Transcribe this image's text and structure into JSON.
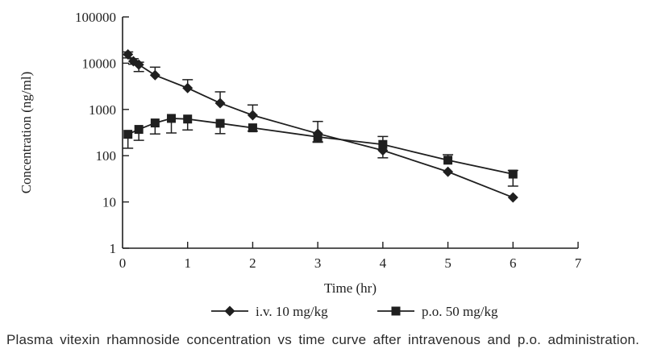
{
  "figure": {
    "caption": "Plasma vitexin rhamnoside concentration vs time curve after intravenous and p.o. administration."
  },
  "chart_data": {
    "type": "line",
    "y_scale": "log",
    "title": "",
    "xlabel": "Time (hr)",
    "ylabel": "Concentration (ng/ml)",
    "xlim": [
      0,
      7
    ],
    "ylim": [
      1,
      100000
    ],
    "xticks": [
      0,
      1,
      2,
      3,
      4,
      5,
      6,
      7
    ],
    "yticks": [
      1,
      10,
      100,
      1000,
      10000,
      100000
    ],
    "grid": false,
    "legend_position": "bottom",
    "colors": {
      "line": "#1f1f1f",
      "text": "#1f1f1f",
      "background": "#ffffff"
    },
    "series": [
      {
        "name": "i.v. 10 mg/kg",
        "marker": "diamond",
        "x": [
          0.083,
          0.167,
          0.25,
          0.5,
          1,
          1.5,
          2,
          3,
          4,
          5,
          6
        ],
        "y": [
          15500,
          11000,
          9300,
          5500,
          2900,
          1370,
          750,
          300,
          130,
          45,
          12.5
        ],
        "err_hi": [
          17500,
          12500,
          10500,
          8200,
          4400,
          2400,
          1250,
          550,
          130,
          45,
          12.5
        ],
        "err_lo": [
          13000,
          9500,
          6600,
          5500,
          2900,
          1370,
          750,
          200,
          90,
          45,
          12.5
        ]
      },
      {
        "name": "p.o. 50 mg/kg",
        "marker": "square",
        "x": [
          0.083,
          0.25,
          0.5,
          0.75,
          1,
          1.5,
          2,
          3,
          4,
          5,
          6
        ],
        "y": [
          290,
          370,
          510,
          640,
          620,
          500,
          400,
          255,
          175,
          80,
          40
        ],
        "err_hi": [
          290,
          370,
          510,
          640,
          620,
          500,
          400,
          255,
          260,
          105,
          48
        ],
        "err_lo": [
          145,
          215,
          295,
          310,
          360,
          300,
          340,
          195,
          175,
          80,
          22
        ]
      }
    ]
  }
}
